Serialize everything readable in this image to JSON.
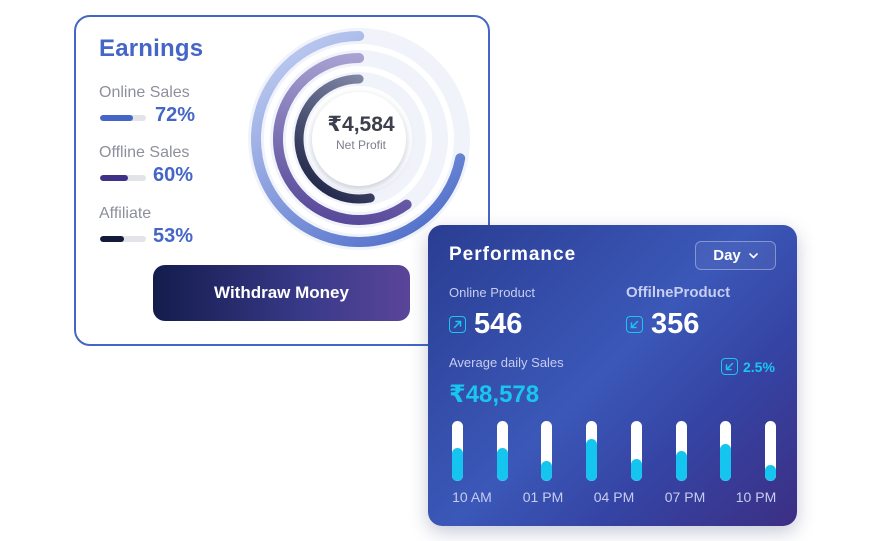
{
  "earnings": {
    "title": "Earnings",
    "metrics": [
      {
        "label": "Online Sales",
        "value": "72%",
        "progress": 0.72,
        "color": "#4566c6"
      },
      {
        "label": "Offline Sales",
        "value": "60%",
        "progress": 0.6,
        "color": "#3f3187"
      },
      {
        "label": "Affiliate",
        "value": "53%",
        "progress": 0.53,
        "color": "#141a3d"
      }
    ],
    "net_profit_value": "₹4,584",
    "net_profit_label": "Net Profit",
    "withdraw_label": "Withdraw Money"
  },
  "performance": {
    "title": "Performance",
    "period_selected": "Day",
    "online_label": "Online Product",
    "online_value": "546",
    "offline_label": "OffilneProduct",
    "offline_value": "356",
    "avg_label": "Average daily Sales",
    "avg_value": "₹48,578",
    "change": "2.5%",
    "accent_color": "#18c6f0",
    "bar_levels": [
      0.55,
      0.55,
      0.33,
      0.7,
      0.37,
      0.5,
      0.62,
      0.27
    ],
    "time_labels": [
      "10 AM",
      "01 PM",
      "04 PM",
      "07 PM",
      "10 PM"
    ]
  }
}
